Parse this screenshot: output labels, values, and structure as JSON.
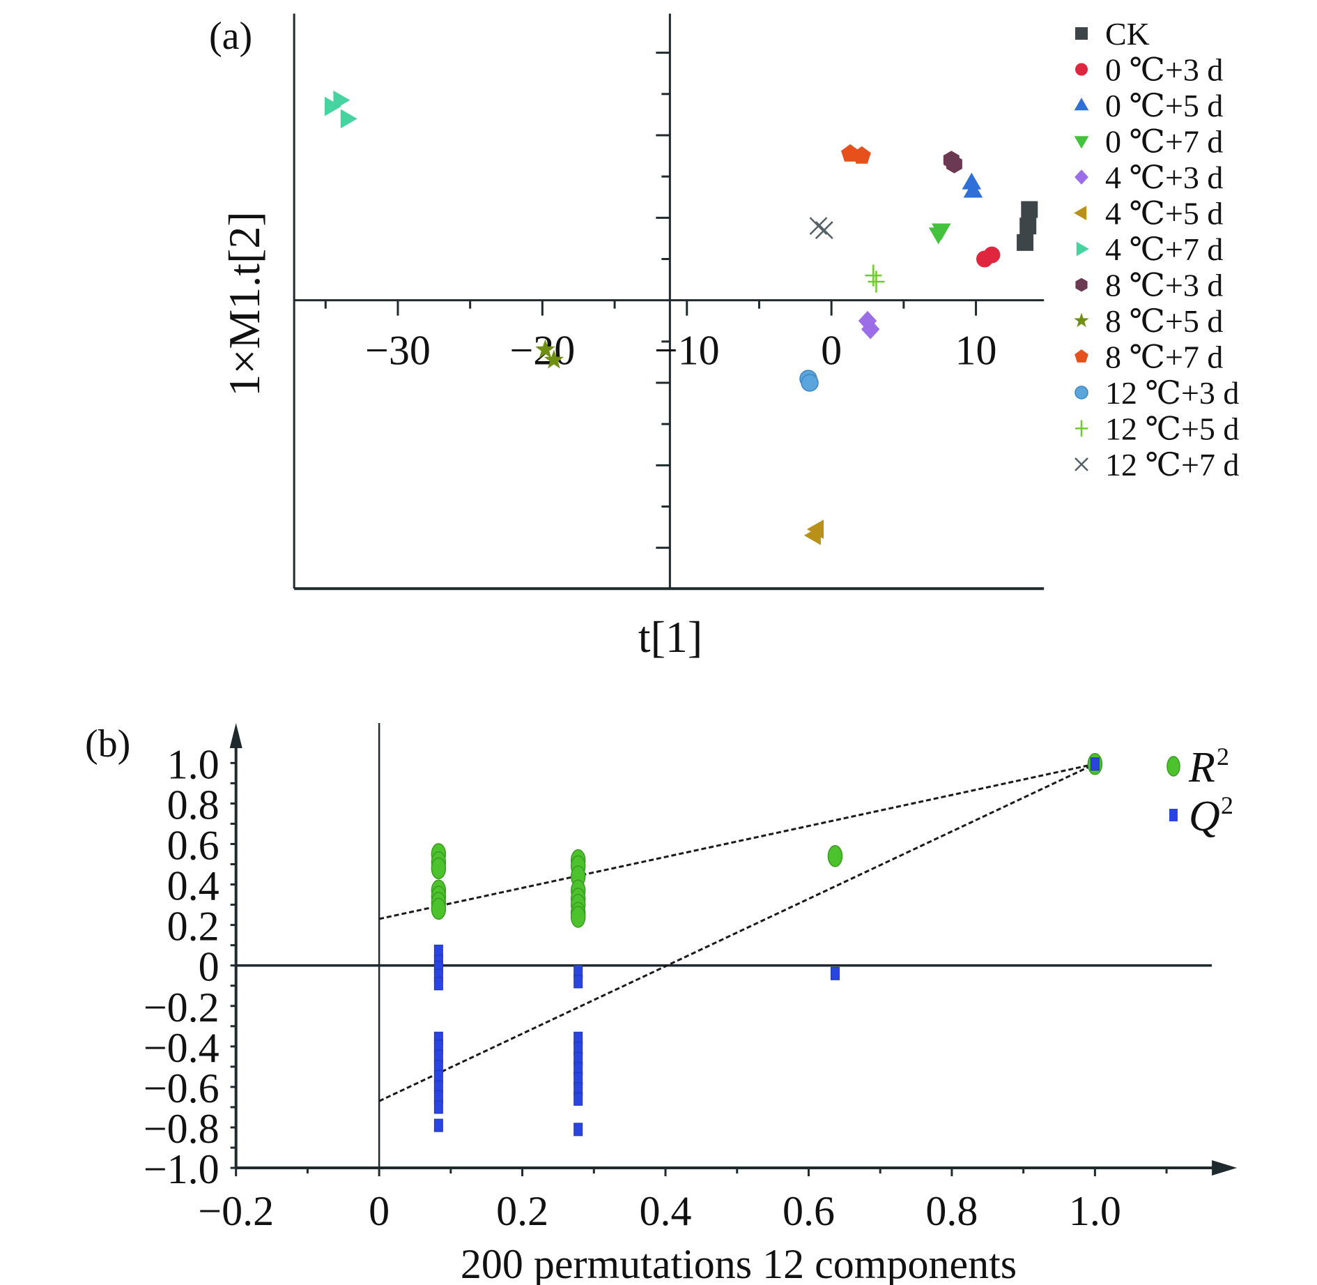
{
  "chart_data": [
    {
      "panel_label": "(a)",
      "type": "scatter",
      "title": "",
      "xlabel": "t[1]",
      "ylabel": "1×M1.t[2]",
      "xlim": [
        -36,
        15
      ],
      "ylim": [
        -7,
        7
      ],
      "x_ticks": [
        -30,
        -20,
        -10,
        0,
        10
      ],
      "x_tick_labels": [
        "−30",
        "−20",
        "−10",
        "0",
        "10"
      ],
      "y_tick_labels": [],
      "y_units_note_hidden": true,
      "legend_position": "right",
      "series": [
        {
          "name": "CK",
          "marker": "square",
          "color": "#3d4549",
          "points": [
            [
              13.4,
              1.4
            ],
            [
              13.6,
              1.8
            ],
            [
              13.7,
              2.2
            ]
          ]
        },
        {
          "name": "0 ℃+3 d",
          "marker": "circle",
          "color": "#e0263f",
          "points": [
            [
              10.6,
              1.0
            ],
            [
              11.1,
              1.1
            ]
          ]
        },
        {
          "name": "0 ℃+5 d",
          "marker": "triangle-up",
          "color": "#2f6fd8",
          "points": [
            [
              9.7,
              2.85
            ],
            [
              9.8,
              2.65
            ]
          ]
        },
        {
          "name": "0 ℃+7 d",
          "marker": "triangle-down",
          "color": "#45c23d",
          "points": [
            [
              7.4,
              1.6
            ],
            [
              7.6,
              1.7
            ]
          ]
        },
        {
          "name": "4 ℃+3 d",
          "marker": "diamond",
          "color": "#9b6ee8",
          "points": [
            [
              2.5,
              -0.5
            ],
            [
              2.7,
              -0.7
            ]
          ]
        },
        {
          "name": "4 ℃+5 d",
          "marker": "triangle-left",
          "color": "#b8901a",
          "points": [
            [
              -1.2,
              -5.7
            ],
            [
              -1.0,
              -5.55
            ]
          ]
        },
        {
          "name": "4 ℃+7 d",
          "marker": "triangle-right",
          "color": "#45d3a0",
          "points": [
            [
              -34.6,
              4.7
            ],
            [
              -34.0,
              4.85
            ],
            [
              -33.5,
              4.4
            ]
          ]
        },
        {
          "name": "8 ℃+3 d",
          "marker": "hexagon",
          "color": "#6b3a52",
          "points": [
            [
              8.3,
              3.4
            ],
            [
              8.5,
              3.3
            ]
          ]
        },
        {
          "name": "8 ℃+5 d",
          "marker": "star",
          "color": "#6e8f12",
          "points": [
            [
              -19.8,
              -1.2
            ],
            [
              -19.2,
              -1.45
            ]
          ]
        },
        {
          "name": "8 ℃+7 d",
          "marker": "pentagon",
          "color": "#e6501a",
          "points": [
            [
              1.3,
              3.55
            ],
            [
              2.1,
              3.5
            ]
          ]
        },
        {
          "name": "12 ℃+3 d",
          "marker": "sphere",
          "color": "#5aa5dc",
          "points": [
            [
              -1.6,
              -1.9
            ],
            [
              -1.5,
              -2.0
            ]
          ]
        },
        {
          "name": "12 ℃+5 d",
          "marker": "plus",
          "color": "#6ccb2a",
          "points": [
            [
              2.9,
              0.6
            ],
            [
              3.1,
              0.45
            ]
          ]
        },
        {
          "name": "12 ℃+7 d",
          "marker": "x",
          "color": "#556066",
          "points": [
            [
              -0.9,
              1.8
            ],
            [
              -0.5,
              1.7
            ]
          ]
        }
      ]
    },
    {
      "panel_label": "(b)",
      "type": "scatter",
      "title": "",
      "xlabel": "200 permutations 12 components",
      "ylabel": "",
      "xlim": [
        -0.2,
        1.2
      ],
      "ylim": [
        -1.0,
        1.1
      ],
      "x_ticks": [
        -0.2,
        0,
        0.2,
        0.4,
        0.6,
        0.8,
        1.0
      ],
      "x_tick_labels": [
        "−0.2",
        "0",
        "0.2",
        "0.4",
        "0.6",
        "0.8",
        "1.0"
      ],
      "y_ticks": [
        1.0,
        0.8,
        0.6,
        0.4,
        0.2,
        0,
        -0.2,
        -0.4,
        -0.6,
        -0.8,
        -1.0
      ],
      "y_tick_labels": [
        "1.0",
        "0.8",
        "0.6",
        "0.4",
        "0.2",
        "0",
        "−0.2",
        "−0.4",
        "−0.6",
        "−0.8",
        "−1.0"
      ],
      "legend_position": "top-right",
      "legend": [
        {
          "name": "R",
          "sup": "2",
          "marker": "ellipse",
          "color": "#4cc32c"
        },
        {
          "name": "Q",
          "sup": "2",
          "marker": "rect",
          "color": "#2a44e0"
        }
      ],
      "series": [
        {
          "name": "R2",
          "marker": "ellipse",
          "color": "#4cc32c",
          "points": [
            [
              0.083,
              0.55
            ],
            [
              0.083,
              0.51
            ],
            [
              0.083,
              0.48
            ],
            [
              0.083,
              0.37
            ],
            [
              0.083,
              0.34
            ],
            [
              0.083,
              0.31
            ],
            [
              0.083,
              0.28
            ],
            [
              0.278,
              0.52
            ],
            [
              0.278,
              0.49
            ],
            [
              0.278,
              0.44
            ],
            [
              0.278,
              0.37
            ],
            [
              0.278,
              0.33
            ],
            [
              0.278,
              0.3
            ],
            [
              0.278,
              0.26
            ],
            [
              0.278,
              0.24
            ],
            [
              0.637,
              0.54
            ],
            [
              1.0,
              0.995
            ]
          ]
        },
        {
          "name": "Q2",
          "marker": "rect",
          "color": "#2a44e0",
          "points": [
            [
              0.083,
              0.07
            ],
            [
              0.083,
              0.02
            ],
            [
              0.083,
              -0.01
            ],
            [
              0.083,
              -0.05
            ],
            [
              0.083,
              -0.09
            ],
            [
              0.083,
              -0.36
            ],
            [
              0.083,
              -0.4
            ],
            [
              0.083,
              -0.45
            ],
            [
              0.083,
              -0.5
            ],
            [
              0.083,
              -0.55
            ],
            [
              0.083,
              -0.6
            ],
            [
              0.083,
              -0.65
            ],
            [
              0.083,
              -0.7
            ],
            [
              0.083,
              -0.79
            ],
            [
              0.278,
              -0.03
            ],
            [
              0.278,
              -0.08
            ],
            [
              0.278,
              -0.36
            ],
            [
              0.278,
              -0.41
            ],
            [
              0.278,
              -0.46
            ],
            [
              0.278,
              -0.51
            ],
            [
              0.278,
              -0.56
            ],
            [
              0.278,
              -0.61
            ],
            [
              0.278,
              -0.66
            ],
            [
              0.278,
              -0.81
            ],
            [
              0.637,
              -0.04
            ],
            [
              1.0,
              0.995
            ]
          ]
        }
      ],
      "regression_lines": [
        {
          "name": "R2 intercept line",
          "from": [
            0,
            0.23
          ],
          "to": [
            1.0,
            0.995
          ]
        },
        {
          "name": "Q2 intercept line",
          "from": [
            0,
            -0.67
          ],
          "to": [
            1.0,
            0.995
          ]
        }
      ]
    }
  ]
}
